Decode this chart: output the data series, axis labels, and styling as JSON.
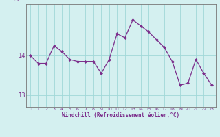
{
  "x": [
    0,
    1,
    2,
    3,
    4,
    5,
    6,
    7,
    8,
    9,
    10,
    11,
    12,
    13,
    14,
    15,
    16,
    17,
    18,
    19,
    20,
    21,
    22,
    23
  ],
  "y": [
    14.0,
    13.8,
    13.8,
    14.25,
    14.1,
    13.9,
    13.85,
    13.85,
    13.85,
    13.55,
    13.9,
    14.55,
    14.45,
    14.9,
    14.75,
    14.6,
    14.4,
    14.2,
    13.85,
    13.25,
    13.3,
    13.9,
    13.55,
    13.25
  ],
  "ylim": [
    12.7,
    15.3
  ],
  "yticks": [
    13,
    14
  ],
  "xtick_labels": [
    "0",
    "1",
    "2",
    "3",
    "4",
    "5",
    "6",
    "7",
    "8",
    "9",
    "10",
    "11",
    "12",
    "13",
    "14",
    "15",
    "16",
    "17",
    "18",
    "19",
    "20",
    "21",
    "22",
    "23"
  ],
  "xlabel": "Windchill (Refroidissement éolien,°C)",
  "line_color": "#7b2d8b",
  "marker_color": "#7b2d8b",
  "bg_color": "#d4f0f0",
  "grid_color": "#a0d8d8",
  "tick_color": "#7b2d8b",
  "figsize": [
    3.2,
    2.0
  ],
  "dpi": 100
}
